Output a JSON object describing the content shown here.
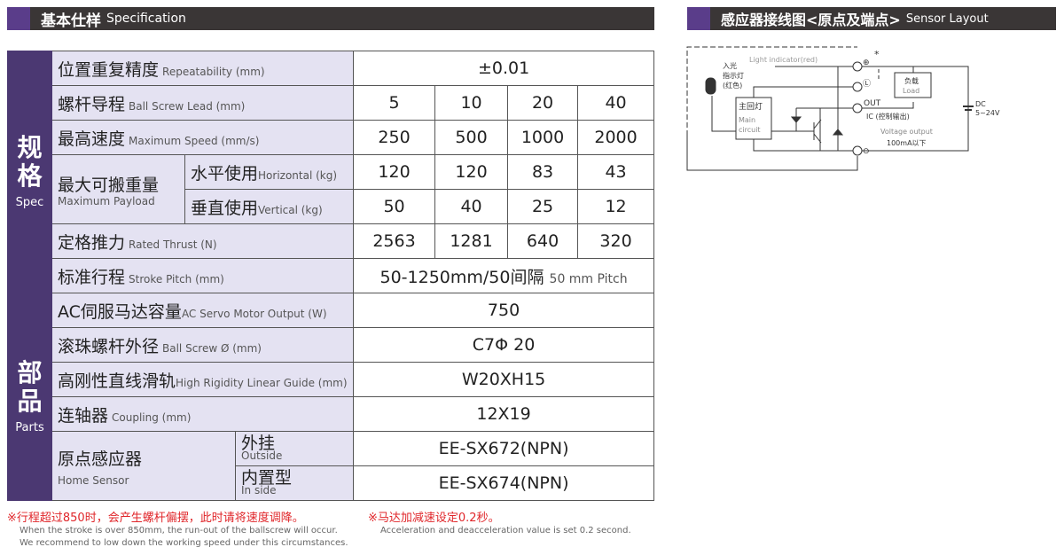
{
  "spec_header": {
    "zh": "基本仕样",
    "en": "Specification"
  },
  "sensor_header": {
    "zh": "感应器接线图<原点及端点>",
    "en": "Sensor Layout"
  },
  "spec_category": {
    "zh": [
      "规",
      "格"
    ],
    "en": "Spec"
  },
  "parts_category": {
    "zh": [
      "部",
      "品"
    ],
    "en": "Parts"
  },
  "rows": {
    "repeatability": {
      "zh": "位置重复精度",
      "en": "Repeatability (mm)",
      "value": "±0.01"
    },
    "lead": {
      "zh": "螺杆导程",
      "en": "Ball Screw Lead (mm)",
      "values": [
        "5",
        "10",
        "20",
        "40"
      ]
    },
    "speed": {
      "zh": "最高速度",
      "en": "Maximum Speed (mm/s)",
      "values": [
        "250",
        "500",
        "1000",
        "2000"
      ]
    },
    "payload": {
      "zh": "最大可搬重量",
      "en": "Maximum Payload",
      "horizontal": {
        "zh": "水平使用",
        "en": "Horizontal (kg)",
        "values": [
          "120",
          "120",
          "83",
          "43"
        ]
      },
      "vertical": {
        "zh": "垂直使用",
        "en": "Vertical (kg)",
        "values": [
          "50",
          "40",
          "25",
          "12"
        ]
      }
    },
    "thrust": {
      "zh": "定格推力",
      "en": "Rated Thrust (N)",
      "values": [
        "2563",
        "1281",
        "640",
        "320"
      ]
    },
    "stroke": {
      "zh": "标准行程",
      "en": "Stroke Pitch (mm)",
      "value": "50-1250mm/50间隔",
      "value_en": "50 mm Pitch"
    },
    "motor": {
      "zh": "AC伺服马达容量",
      "en": "AC Servo Motor Output (W)",
      "value": "750"
    },
    "ballscrew": {
      "zh": "滚珠螺杆外径",
      "en": "Ball Screw Ø (mm)",
      "value": "C7Φ 20"
    },
    "guide": {
      "zh": "高刚性直线滑轨",
      "en": "High Rigidity Linear Guide (mm)",
      "value": "W20XH15"
    },
    "coupling": {
      "zh": "连轴器",
      "en": "Coupling (mm)",
      "value": "12X19"
    },
    "home_sensor": {
      "zh": "原点感应器",
      "en": "Home Sensor",
      "outside": {
        "zh": "外挂",
        "en": "Outside",
        "value": "EE-SX672(NPN)"
      },
      "inside": {
        "zh": "内置型",
        "en": "In side",
        "value": "EE-SX674(NPN)"
      }
    }
  },
  "notes": {
    "n1": {
      "zh": "※行程超过850时，会产生螺杆偏摆，此时请将速度调降。",
      "en1": "When the stroke is over 850mm, the run-out of the ballscrew will occur.",
      "en2": "We recommend to low down the working speed under this circumstances."
    },
    "n2": {
      "zh": "※马达加减速设定0.2秒。",
      "en1": "Acceleration and deacceleration value is set 0.2 second."
    }
  },
  "diagram": {
    "light_indicator": "Light indicator(red)",
    "light_zh1": "入光",
    "light_zh2": "指示灯",
    "light_zh3": "(红色)",
    "main_zh": "主回灯",
    "main_en1": "Main",
    "main_en2": "circuit",
    "load_zh": "负载",
    "load_en": "Load",
    "out": "OUT",
    "ic": "IC (控制输出)",
    "voltage": "Voltage output",
    "current": "100mA以下",
    "dc": "DC",
    "dc_v": "5~24V",
    "star": "*"
  },
  "colors": {
    "header_bg": "#3a3636",
    "accent": "#5a3d8a",
    "category_bg": "#4b3872",
    "label_bg": "#e4e2f2",
    "note_red": "#e0262a"
  }
}
